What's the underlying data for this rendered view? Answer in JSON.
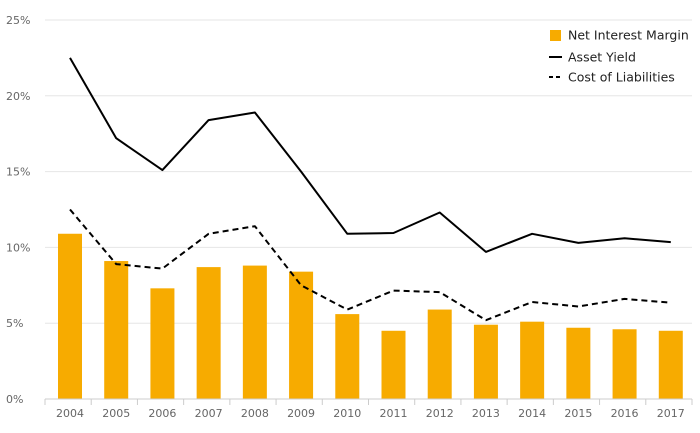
{
  "chart_data": {
    "type": "bar",
    "title": "",
    "xlabel": "",
    "ylabel": "",
    "categories": [
      "2004",
      "2005",
      "2006",
      "2007",
      "2008",
      "2009",
      "2010",
      "2011",
      "2012",
      "2013",
      "2014",
      "2015",
      "2016",
      "2017"
    ],
    "ylim": [
      0,
      25
    ],
    "yticks": [
      "0%",
      "5%",
      "10%",
      "15%",
      "20%",
      "25%"
    ],
    "grid": true,
    "legend_position": "top-right",
    "series": [
      {
        "name": "Net Interest Margin",
        "type": "bar",
        "color": "#f7ab00",
        "values": [
          10.9,
          9.1,
          7.3,
          8.7,
          8.8,
          8.4,
          5.6,
          4.5,
          5.9,
          4.9,
          5.1,
          4.7,
          4.6,
          4.5
        ]
      },
      {
        "name": "Asset Yield",
        "type": "line",
        "style": "solid",
        "color": "#000000",
        "values": [
          22.5,
          17.2,
          15.1,
          18.4,
          18.9,
          15.0,
          10.9,
          10.95,
          12.3,
          9.7,
          10.9,
          10.3,
          10.6,
          10.35
        ]
      },
      {
        "name": "Cost of Liabilities",
        "type": "line",
        "style": "dashed",
        "color": "#000000",
        "values": [
          12.5,
          8.9,
          8.6,
          10.9,
          11.4,
          7.5,
          5.9,
          7.15,
          7.05,
          5.2,
          6.4,
          6.1,
          6.6,
          6.35
        ]
      }
    ]
  }
}
